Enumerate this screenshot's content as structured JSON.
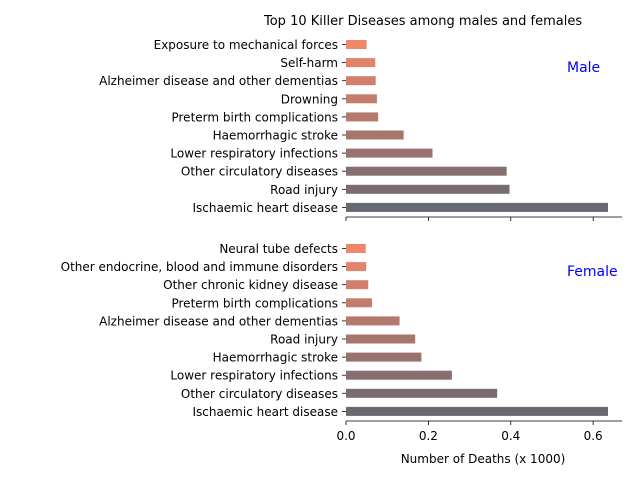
{
  "chart_data": {
    "type": "bar",
    "orientation": "horizontal",
    "title": "Top 10 Killer Diseases among males and females",
    "xlabel": "Number of Deaths (x 1000)",
    "xlim": [
      0,
      0.67
    ],
    "xticks": [
      0.0,
      0.2,
      0.4,
      0.6
    ],
    "xtick_labels": [
      "0.0",
      "0.2",
      "0.4",
      "0.6"
    ],
    "colors": {
      "start": "#f0876a",
      "end": "#6a6870",
      "axis": "#000000",
      "annotation": "#0000ff"
    },
    "panels": [
      {
        "name": "male",
        "annotation": "Male",
        "categories": [
          "Exposure to mechanical forces",
          "Self-harm",
          "Alzheimer disease and other dementias",
          "Drowning",
          "Preterm birth complications",
          "Haemorrhagic stroke",
          "Lower respiratory infections",
          "Other circulatory diseases",
          "Road injury",
          "Ischaemic heart disease"
        ],
        "values": [
          0.05,
          0.071,
          0.072,
          0.075,
          0.078,
          0.14,
          0.21,
          0.39,
          0.397,
          0.636
        ]
      },
      {
        "name": "female",
        "annotation": "Female",
        "categories": [
          "Neural tube defects",
          "Other endocrine, blood and immune disorders",
          "Other chronic kidney disease",
          "Preterm birth complications",
          "Alzheimer disease and other dementias",
          "Road injury",
          "Haemorrhagic stroke",
          "Lower respiratory infections",
          "Other circulatory diseases",
          "Ischaemic heart disease"
        ],
        "values": [
          0.048,
          0.049,
          0.054,
          0.063,
          0.13,
          0.168,
          0.183,
          0.257,
          0.367,
          0.636
        ]
      }
    ]
  }
}
